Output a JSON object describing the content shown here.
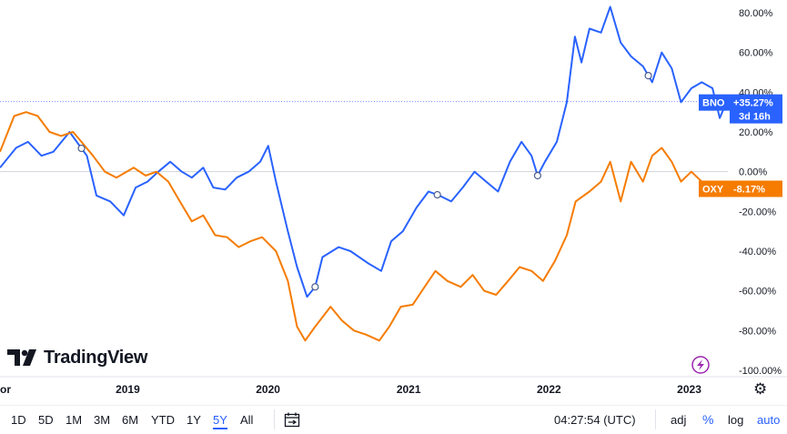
{
  "chart_data": {
    "type": "line",
    "yaxis": {
      "ticks": [
        "80.00%",
        "60.00%",
        "40.00%",
        "20.00%",
        "0.00%",
        "-20.00%",
        "-40.00%",
        "-60.00%",
        "-80.00%",
        "-100.00%"
      ],
      "tick_values": [
        80,
        60,
        40,
        20,
        0,
        -20,
        -40,
        -60,
        -80,
        -100
      ],
      "range": [
        -100,
        80
      ],
      "position": "right"
    },
    "xaxis": {
      "range": [
        "2018-02-01",
        "2023-04-10"
      ],
      "ticks": [
        {
          "label": "or",
          "date": "2018-01-20"
        },
        {
          "label": "2019",
          "date": "2019-01-01"
        },
        {
          "label": "2020",
          "date": "2020-01-01"
        },
        {
          "label": "2021",
          "date": "2021-01-01"
        },
        {
          "label": "2022",
          "date": "2022-01-01"
        },
        {
          "label": "2023",
          "date": "2023-01-01"
        }
      ]
    },
    "grid": false,
    "series": [
      {
        "name": "BNO",
        "color": "#2962ff",
        "last_label": "+35.27%",
        "countdown": "3d 16h",
        "points": [
          [
            "2018-02-01",
            2
          ],
          [
            "2018-03-15",
            12
          ],
          [
            "2018-04-15",
            15
          ],
          [
            "2018-05-20",
            8
          ],
          [
            "2018-06-20",
            10
          ],
          [
            "2018-08-01",
            20
          ],
          [
            "2018-09-15",
            8
          ],
          [
            "2018-10-10",
            -12
          ],
          [
            "2018-11-15",
            -15
          ],
          [
            "2018-12-20",
            -22
          ],
          [
            "2019-01-20",
            -8
          ],
          [
            "2019-02-20",
            -5
          ],
          [
            "2019-03-20",
            0
          ],
          [
            "2019-04-20",
            5
          ],
          [
            "2019-05-20",
            0
          ],
          [
            "2019-06-15",
            -3
          ],
          [
            "2019-07-15",
            2
          ],
          [
            "2019-08-10",
            -8
          ],
          [
            "2019-09-10",
            -9
          ],
          [
            "2019-10-10",
            -3
          ],
          [
            "2019-11-10",
            0
          ],
          [
            "2019-12-10",
            5
          ],
          [
            "2019-12-31",
            13
          ],
          [
            "2020-01-20",
            -5
          ],
          [
            "2020-02-20",
            -30
          ],
          [
            "2020-03-15",
            -48
          ],
          [
            "2020-04-10",
            -63
          ],
          [
            "2020-05-01",
            -58
          ],
          [
            "2020-05-20",
            -43
          ],
          [
            "2020-07-01",
            -38
          ],
          [
            "2020-08-01",
            -40
          ],
          [
            "2020-09-15",
            -46
          ],
          [
            "2020-10-20",
            -50
          ],
          [
            "2020-11-15",
            -35
          ],
          [
            "2020-12-15",
            -30
          ],
          [
            "2021-01-20",
            -18
          ],
          [
            "2021-02-20",
            -10
          ],
          [
            "2021-03-20",
            -12
          ],
          [
            "2021-04-20",
            -15
          ],
          [
            "2021-05-20",
            -8
          ],
          [
            "2021-06-20",
            0
          ],
          [
            "2021-07-20",
            -5
          ],
          [
            "2021-08-20",
            -10
          ],
          [
            "2021-09-20",
            5
          ],
          [
            "2021-10-20",
            15
          ],
          [
            "2021-11-15",
            8
          ],
          [
            "2021-12-01",
            -2
          ],
          [
            "2021-12-20",
            5
          ],
          [
            "2022-01-20",
            15
          ],
          [
            "2022-02-15",
            35
          ],
          [
            "2022-03-08",
            68
          ],
          [
            "2022-03-25",
            55
          ],
          [
            "2022-04-15",
            72
          ],
          [
            "2022-05-15",
            70
          ],
          [
            "2022-06-08",
            83
          ],
          [
            "2022-07-05",
            65
          ],
          [
            "2022-08-01",
            58
          ],
          [
            "2022-09-01",
            53
          ],
          [
            "2022-09-25",
            45
          ],
          [
            "2022-10-20",
            60
          ],
          [
            "2022-11-15",
            52
          ],
          [
            "2022-12-09",
            35
          ],
          [
            "2023-01-05",
            42
          ],
          [
            "2023-02-01",
            45
          ],
          [
            "2023-03-01",
            42
          ],
          [
            "2023-03-20",
            27
          ],
          [
            "2023-04-07",
            35.27
          ]
        ],
        "markers": [
          "2018-09-01",
          "2020-05-01",
          "2021-03-15",
          "2021-12-01",
          "2022-09-15"
        ]
      },
      {
        "name": "OXY",
        "color": "#f57c00",
        "last_label": "-8.17%",
        "points": [
          [
            "2018-02-01",
            10
          ],
          [
            "2018-03-10",
            28
          ],
          [
            "2018-04-10",
            30
          ],
          [
            "2018-05-10",
            28
          ],
          [
            "2018-06-10",
            20
          ],
          [
            "2018-07-10",
            18
          ],
          [
            "2018-08-10",
            20
          ],
          [
            "2018-09-01",
            15
          ],
          [
            "2018-10-01",
            8
          ],
          [
            "2018-11-01",
            0
          ],
          [
            "2018-12-01",
            -3
          ],
          [
            "2019-01-15",
            2
          ],
          [
            "2019-02-15",
            -2
          ],
          [
            "2019-03-15",
            0
          ],
          [
            "2019-04-15",
            -5
          ],
          [
            "2019-05-15",
            -15
          ],
          [
            "2019-06-15",
            -25
          ],
          [
            "2019-07-15",
            -22
          ],
          [
            "2019-08-15",
            -32
          ],
          [
            "2019-09-15",
            -33
          ],
          [
            "2019-10-15",
            -38
          ],
          [
            "2019-11-15",
            -35
          ],
          [
            "2019-12-15",
            -33
          ],
          [
            "2020-01-20",
            -40
          ],
          [
            "2020-02-20",
            -55
          ],
          [
            "2020-03-15",
            -78
          ],
          [
            "2020-04-05",
            -85
          ],
          [
            "2020-05-01",
            -78
          ],
          [
            "2020-06-10",
            -68
          ],
          [
            "2020-07-10",
            -75
          ],
          [
            "2020-08-10",
            -80
          ],
          [
            "2020-09-10",
            -82
          ],
          [
            "2020-10-15",
            -85
          ],
          [
            "2020-11-10",
            -78
          ],
          [
            "2020-12-10",
            -68
          ],
          [
            "2021-01-10",
            -67
          ],
          [
            "2021-02-10",
            -58
          ],
          [
            "2021-03-10",
            -50
          ],
          [
            "2021-04-10",
            -55
          ],
          [
            "2021-05-15",
            -58
          ],
          [
            "2021-06-15",
            -52
          ],
          [
            "2021-07-15",
            -60
          ],
          [
            "2021-08-15",
            -62
          ],
          [
            "2021-09-15",
            -55
          ],
          [
            "2021-10-15",
            -48
          ],
          [
            "2021-11-15",
            -50
          ],
          [
            "2021-12-15",
            -55
          ],
          [
            "2022-01-15",
            -45
          ],
          [
            "2022-02-15",
            -32
          ],
          [
            "2022-03-10",
            -15
          ],
          [
            "2022-04-15",
            -10
          ],
          [
            "2022-05-15",
            -5
          ],
          [
            "2022-06-08",
            5
          ],
          [
            "2022-07-05",
            -15
          ],
          [
            "2022-08-01",
            5
          ],
          [
            "2022-09-01",
            -5
          ],
          [
            "2022-09-25",
            8
          ],
          [
            "2022-10-20",
            12
          ],
          [
            "2022-11-15",
            5
          ],
          [
            "2022-12-09",
            -5
          ],
          [
            "2023-01-05",
            0
          ],
          [
            "2023-02-01",
            -5
          ],
          [
            "2023-03-01",
            -8
          ],
          [
            "2023-04-07",
            -8.17
          ]
        ]
      }
    ],
    "zero_line": 0,
    "crosshair_value": 35.27
  },
  "brand": {
    "name": "TradingView"
  },
  "toolbar": {
    "ranges": [
      "1D",
      "5D",
      "1M",
      "3M",
      "6M",
      "YTD",
      "1Y",
      "5Y",
      "All"
    ],
    "active_range": "5Y",
    "clock": "04:27:54 (UTC)",
    "adj": "adj",
    "percent": "%",
    "log": "log",
    "auto": "auto"
  },
  "icons": {
    "settings": "gear-icon",
    "compare": "calendar-range-icon",
    "lightning": "lightning-icon"
  }
}
